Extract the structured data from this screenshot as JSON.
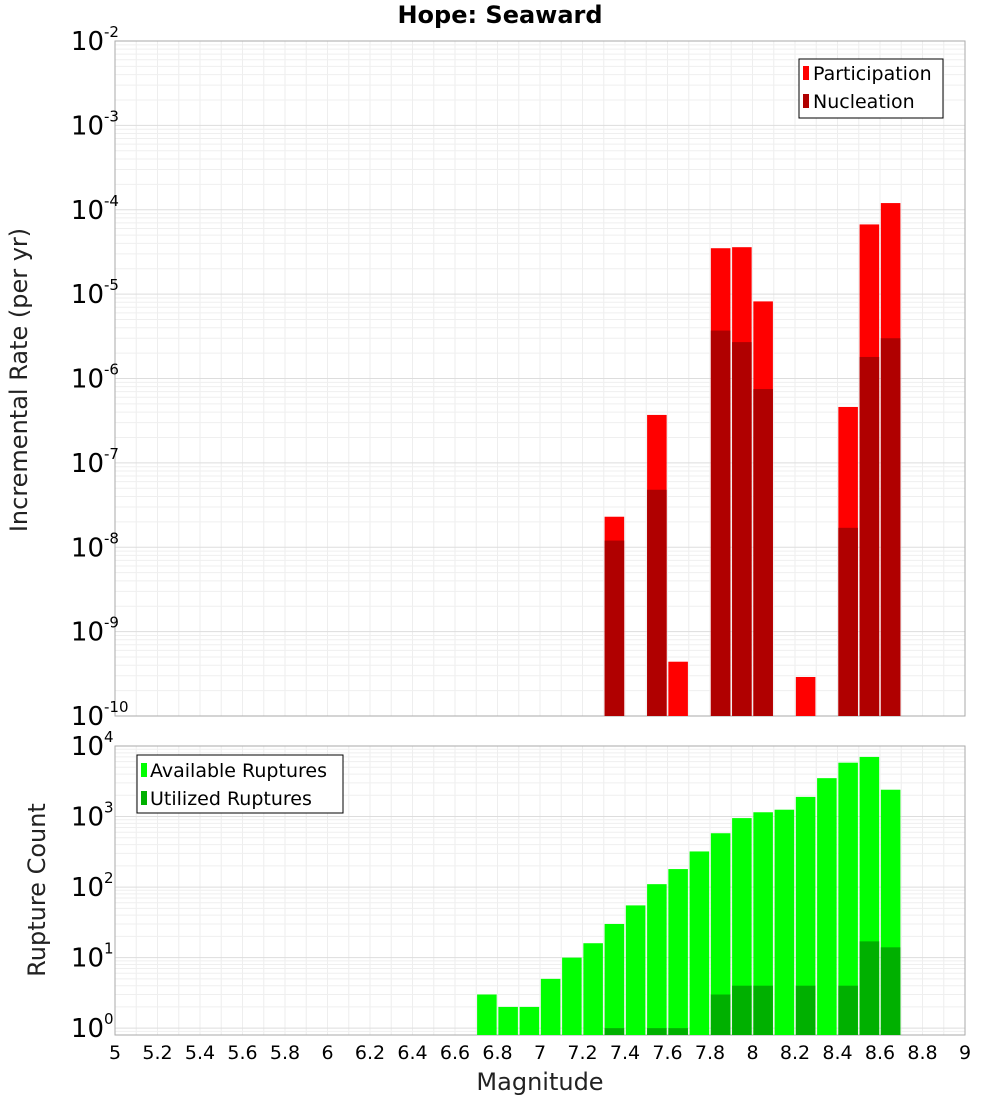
{
  "chart_data": [
    {
      "type": "bar",
      "title": "Hope: Seaward",
      "xlabel": "",
      "ylabel": "Incremental Rate (per yr)",
      "yscale": "log",
      "ylim": [
        1e-10,
        0.01
      ],
      "xlim": [
        5,
        9
      ],
      "ytick_labels": [
        {
          "base": "10",
          "exp": "-2"
        },
        {
          "base": "10",
          "exp": "-3"
        },
        {
          "base": "10",
          "exp": "-4"
        },
        {
          "base": "10",
          "exp": "-5"
        },
        {
          "base": "10",
          "exp": "-6"
        },
        {
          "base": "10",
          "exp": "-7"
        },
        {
          "base": "10",
          "exp": "-8"
        },
        {
          "base": "10",
          "exp": "-9"
        },
        {
          "base": "10",
          "exp": "-10"
        }
      ],
      "grid": true,
      "legend_position": "top-right",
      "series": [
        {
          "name": "Participation",
          "color": "#ff0000",
          "points": [
            {
              "x": 7.35,
              "y": 2.3e-08
            },
            {
              "x": 7.55,
              "y": 3.7e-07
            },
            {
              "x": 7.65,
              "y": 4.4e-10
            },
            {
              "x": 7.85,
              "y": 3.5e-05
            },
            {
              "x": 7.95,
              "y": 3.6e-05
            },
            {
              "x": 8.05,
              "y": 8.2e-06
            },
            {
              "x": 8.25,
              "y": 2.9e-10
            },
            {
              "x": 8.45,
              "y": 4.6e-07
            },
            {
              "x": 8.55,
              "y": 6.7e-05
            },
            {
              "x": 8.65,
              "y": 0.00012
            }
          ]
        },
        {
          "name": "Nucleation",
          "color": "#b00000",
          "points": [
            {
              "x": 7.35,
              "y": 1.2e-08
            },
            {
              "x": 7.55,
              "y": 4.8e-08
            },
            {
              "x": 7.85,
              "y": 3.7e-06
            },
            {
              "x": 7.95,
              "y": 2.7e-06
            },
            {
              "x": 8.05,
              "y": 7.5e-07
            },
            {
              "x": 8.45,
              "y": 1.7e-08
            },
            {
              "x": 8.55,
              "y": 1.8e-06
            },
            {
              "x": 8.65,
              "y": 3e-06
            }
          ]
        }
      ]
    },
    {
      "type": "bar",
      "title": "",
      "xlabel": "Magnitude",
      "ylabel": "Rupture Count",
      "yscale": "log",
      "ylim": [
        0.8,
        10000
      ],
      "xlim": [
        5,
        9
      ],
      "xticks": [
        "5",
        "5.2",
        "5.4",
        "5.6",
        "5.8",
        "6",
        "6.2",
        "6.4",
        "6.6",
        "6.8",
        "7",
        "7.2",
        "7.4",
        "7.6",
        "7.8",
        "8",
        "8.2",
        "8.4",
        "8.6",
        "8.8",
        "9"
      ],
      "ytick_labels": [
        {
          "base": "10",
          "exp": "4",
          "value": 10000
        },
        {
          "base": "10",
          "exp": "3",
          "value": 1000
        },
        {
          "base": "10",
          "exp": "2",
          "value": 100
        },
        {
          "base": "10",
          "exp": "1",
          "value": 10
        },
        {
          "base": "10",
          "exp": "0",
          "value": 1
        }
      ],
      "grid": true,
      "legend_position": "top-left",
      "series": [
        {
          "name": "Available Ruptures",
          "color": "#00ff00",
          "points": [
            {
              "x": 6.75,
              "y": 3
            },
            {
              "x": 6.85,
              "y": 2
            },
            {
              "x": 6.95,
              "y": 2
            },
            {
              "x": 7.05,
              "y": 5
            },
            {
              "x": 7.15,
              "y": 10
            },
            {
              "x": 7.25,
              "y": 16
            },
            {
              "x": 7.35,
              "y": 30
            },
            {
              "x": 7.45,
              "y": 55
            },
            {
              "x": 7.55,
              "y": 110
            },
            {
              "x": 7.65,
              "y": 180
            },
            {
              "x": 7.75,
              "y": 320
            },
            {
              "x": 7.85,
              "y": 580
            },
            {
              "x": 7.95,
              "y": 950
            },
            {
              "x": 8.05,
              "y": 1150
            },
            {
              "x": 8.15,
              "y": 1250
            },
            {
              "x": 8.25,
              "y": 1900
            },
            {
              "x": 8.35,
              "y": 3500
            },
            {
              "x": 8.45,
              "y": 5800
            },
            {
              "x": 8.55,
              "y": 7000
            },
            {
              "x": 8.65,
              "y": 2400
            }
          ]
        },
        {
          "name": "Utilized Ruptures",
          "color": "#00b000",
          "points": [
            {
              "x": 7.35,
              "y": 1
            },
            {
              "x": 7.55,
              "y": 1
            },
            {
              "x": 7.65,
              "y": 1
            },
            {
              "x": 7.85,
              "y": 3
            },
            {
              "x": 7.95,
              "y": 4
            },
            {
              "x": 8.05,
              "y": 4
            },
            {
              "x": 8.25,
              "y": 4
            },
            {
              "x": 8.45,
              "y": 4
            },
            {
              "x": 8.55,
              "y": 17
            },
            {
              "x": 8.65,
              "y": 14
            }
          ]
        }
      ]
    }
  ]
}
